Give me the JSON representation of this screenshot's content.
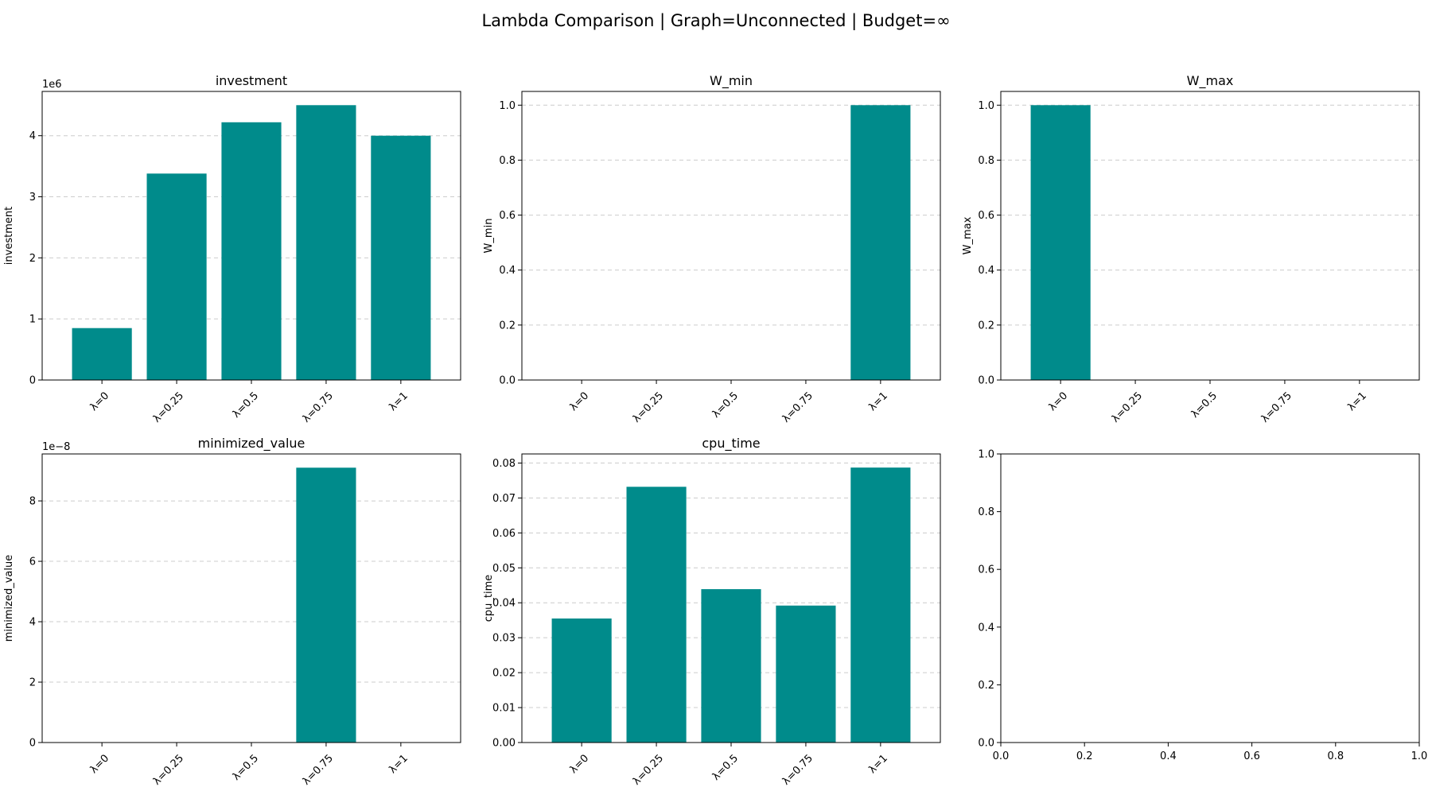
{
  "figure": {
    "title": "Lambda Comparison | Graph=Unconnected | Budget=∞",
    "bar_color": "#008b8b",
    "grid_color": "#cccccc"
  },
  "chart_data": [
    {
      "type": "bar",
      "title": "investment",
      "ylabel": "investment",
      "categories": [
        "λ=0",
        "λ=0.25",
        "λ=0.5",
        "λ=0.75",
        "λ=1"
      ],
      "values": [
        850000,
        3380000,
        4220000,
        4500000,
        4000000
      ],
      "ylim": [
        0,
        4725000
      ],
      "yticks": [
        0,
        1000000,
        2000000,
        3000000,
        4000000
      ],
      "ytick_labels": [
        "0",
        "1",
        "2",
        "3",
        "4"
      ],
      "offset_label": "1e6",
      "grid": "y"
    },
    {
      "type": "bar",
      "title": "W_min",
      "ylabel": "W_min",
      "categories": [
        "λ=0",
        "λ=0.25",
        "λ=0.5",
        "λ=0.75",
        "λ=1"
      ],
      "values": [
        0,
        0,
        0,
        0,
        1.0
      ],
      "ylim": [
        0,
        1.05
      ],
      "yticks": [
        0,
        0.2,
        0.4,
        0.6,
        0.8,
        1.0
      ],
      "ytick_labels": [
        "0.0",
        "0.2",
        "0.4",
        "0.6",
        "0.8",
        "1.0"
      ],
      "grid": "y"
    },
    {
      "type": "bar",
      "title": "W_max",
      "ylabel": "W_max",
      "categories": [
        "λ=0",
        "λ=0.25",
        "λ=0.5",
        "λ=0.75",
        "λ=1"
      ],
      "values": [
        1.0,
        0,
        0,
        0,
        0
      ],
      "ylim": [
        0,
        1.05
      ],
      "yticks": [
        0,
        0.2,
        0.4,
        0.6,
        0.8,
        1.0
      ],
      "ytick_labels": [
        "0.0",
        "0.2",
        "0.4",
        "0.6",
        "0.8",
        "1.0"
      ],
      "grid": "y"
    },
    {
      "type": "bar",
      "title": "minimized_value",
      "ylabel": "minimized_value",
      "categories": [
        "λ=0",
        "λ=0.25",
        "λ=0.5",
        "λ=0.75",
        "λ=1"
      ],
      "values": [
        0,
        0,
        0,
        9.1e-08,
        0
      ],
      "ylim": [
        0,
        9.555e-08
      ],
      "yticks": [
        0,
        2e-08,
        4e-08,
        6e-08,
        8e-08
      ],
      "ytick_labels": [
        "0",
        "2",
        "4",
        "6",
        "8"
      ],
      "offset_label": "1e−8",
      "grid": "y"
    },
    {
      "type": "bar",
      "title": "cpu_time",
      "ylabel": "cpu_time",
      "categories": [
        "λ=0",
        "λ=0.25",
        "λ=0.5",
        "λ=0.75",
        "λ=1"
      ],
      "values": [
        0.0355,
        0.0732,
        0.0439,
        0.0392,
        0.0787
      ],
      "ylim": [
        0,
        0.0826
      ],
      "yticks": [
        0,
        0.01,
        0.02,
        0.03,
        0.04,
        0.05,
        0.06,
        0.07,
        0.08
      ],
      "ytick_labels": [
        "0.00",
        "0.01",
        "0.02",
        "0.03",
        "0.04",
        "0.05",
        "0.06",
        "0.07",
        "0.08"
      ],
      "grid": "y"
    },
    {
      "type": "empty",
      "title": "",
      "xlim": [
        0,
        1
      ],
      "ylim": [
        0,
        1
      ],
      "xticks": [
        0,
        0.2,
        0.4,
        0.6,
        0.8,
        1.0
      ],
      "xtick_labels": [
        "0.0",
        "0.2",
        "0.4",
        "0.6",
        "0.8",
        "1.0"
      ],
      "yticks": [
        0,
        0.2,
        0.4,
        0.6,
        0.8,
        1.0
      ],
      "ytick_labels": [
        "0.0",
        "0.2",
        "0.4",
        "0.6",
        "0.8",
        "1.0"
      ],
      "grid": "none"
    }
  ]
}
